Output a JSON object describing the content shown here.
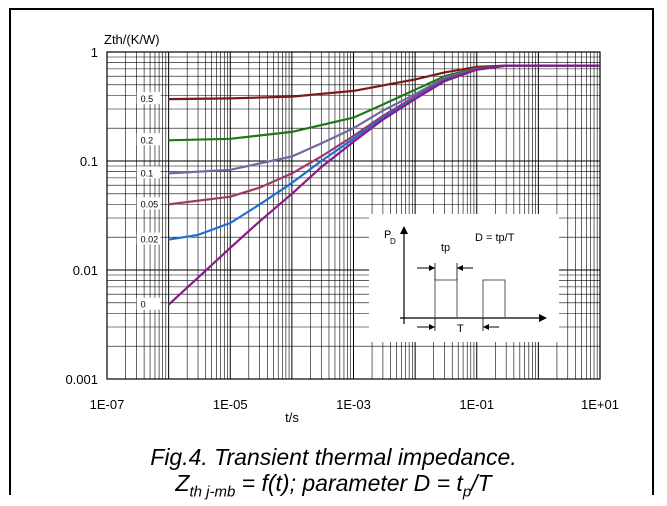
{
  "chart_data": {
    "type": "line",
    "title": "",
    "xlabel": "t/s",
    "ylabel": "Zth/(K/W)",
    "xscale": "log",
    "yscale": "log",
    "xlim": [
      1e-07,
      10
    ],
    "ylim": [
      0.001,
      1
    ],
    "grid": true,
    "x_tick_labels": [
      "1E-07",
      "1E-05",
      "1E-03",
      "1E-01",
      "1E+01"
    ],
    "y_tick_labels": [
      "1",
      "0.1",
      "0.01",
      "0.001"
    ],
    "series": [
      {
        "name": "0.5",
        "color": "#7b1a1a",
        "x": [
          1e-06,
          1e-05,
          0.0001,
          0.001,
          0.01,
          0.03,
          0.1,
          0.3,
          1,
          10
        ],
        "y": [
          0.37,
          0.375,
          0.39,
          0.44,
          0.56,
          0.65,
          0.73,
          0.75,
          0.75,
          0.75
        ]
      },
      {
        "name": "0.2",
        "color": "#1a7a1a",
        "x": [
          1e-06,
          1e-05,
          0.0001,
          0.001,
          0.003,
          0.01,
          0.03,
          0.1,
          0.3,
          1,
          10
        ],
        "y": [
          0.155,
          0.16,
          0.185,
          0.25,
          0.33,
          0.45,
          0.6,
          0.71,
          0.75,
          0.75,
          0.75
        ]
      },
      {
        "name": "0.1",
        "color": "#6e6aa0",
        "x": [
          1e-06,
          1e-05,
          0.0001,
          0.0003,
          0.001,
          0.003,
          0.01,
          0.03,
          0.1,
          0.3,
          1,
          10
        ],
        "y": [
          0.077,
          0.083,
          0.11,
          0.145,
          0.2,
          0.29,
          0.41,
          0.58,
          0.7,
          0.75,
          0.75,
          0.75
        ]
      },
      {
        "name": "0.05",
        "color": "#9b3a6a",
        "x": [
          1e-06,
          1e-05,
          3e-05,
          0.0001,
          0.0003,
          0.001,
          0.003,
          0.01,
          0.03,
          0.1,
          0.3,
          1,
          10
        ],
        "y": [
          0.04,
          0.047,
          0.057,
          0.077,
          0.11,
          0.17,
          0.26,
          0.39,
          0.56,
          0.7,
          0.75,
          0.75,
          0.75
        ]
      },
      {
        "name": "0.02",
        "color": "#1f6fd0",
        "x": [
          1e-06,
          3e-06,
          1e-05,
          3e-05,
          0.0001,
          0.0003,
          0.001,
          0.003,
          0.01,
          0.03,
          0.1,
          0.3,
          1,
          10
        ],
        "y": [
          0.019,
          0.021,
          0.027,
          0.04,
          0.063,
          0.1,
          0.16,
          0.25,
          0.38,
          0.55,
          0.69,
          0.75,
          0.75,
          0.75
        ]
      },
      {
        "name": "0",
        "color": "#8a1a8a",
        "x": [
          1e-06,
          3e-06,
          1e-05,
          3e-05,
          0.0001,
          0.0003,
          0.001,
          0.003,
          0.01,
          0.03,
          0.1,
          0.3,
          1,
          10
        ],
        "y": [
          0.0048,
          0.0085,
          0.016,
          0.028,
          0.05,
          0.088,
          0.15,
          0.24,
          0.37,
          0.54,
          0.69,
          0.75,
          0.75,
          0.75
        ]
      }
    ],
    "inset": {
      "p_label": "P",
      "d_label": "D",
      "formula": "D = tp/T",
      "tp_label": "tp",
      "t_label": "T"
    }
  },
  "caption": {
    "line1": "Fig.4.  Transient thermal impedance.",
    "line2_z": "Z",
    "line2_sub": "th j-mb",
    "line2_mid": " = f(t); parameter D = t",
    "line2_sub2": "p",
    "line2_end": "/T"
  }
}
